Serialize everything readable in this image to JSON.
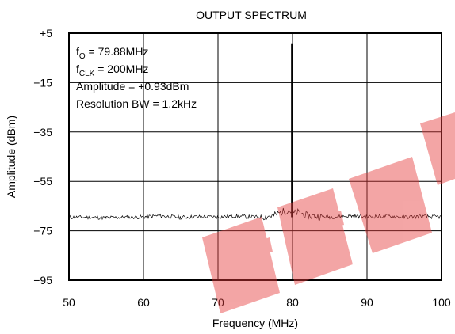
{
  "chart_data": {
    "type": "line",
    "title": "OUTPUT SPECTRUM",
    "xlabel": "Frequency (MHz)",
    "ylabel": "Amplitude (dBm)",
    "xlim": [
      50,
      100
    ],
    "ylim": [
      -95,
      5
    ],
    "x_ticks": [
      50,
      60,
      70,
      80,
      90,
      100
    ],
    "y_ticks": [
      5,
      -15,
      -35,
      -55,
      -75,
      -95
    ],
    "x_tick_labels": [
      "50",
      "60",
      "70",
      "80",
      "90",
      "100"
    ],
    "y_tick_labels": [
      "+5",
      "−15",
      "−35",
      "−55",
      "−75",
      "−95"
    ],
    "grid": true,
    "annotations": [
      {
        "main": "f",
        "sub": "O",
        "rest": " = 79.88MHz"
      },
      {
        "main": "f",
        "sub": "CLK",
        "rest": " = 200MHz"
      },
      {
        "main": "Amplitude = +0.93dBm",
        "sub": "",
        "rest": ""
      },
      {
        "main": "Resolution BW = 1.2kHz",
        "sub": "",
        "rest": ""
      }
    ],
    "watermark_text": "EEPW",
    "series": [
      {
        "noise_floor_dbm": -69.5,
        "peak": {
          "x": 79.88,
          "y": 0.93
        },
        "x": [
          50,
          55,
          60,
          62,
          65,
          67,
          70,
          72,
          75,
          76.5,
          77.5,
          78.5,
          79.5,
          80.2,
          80.8,
          82,
          85,
          88,
          90,
          93,
          95,
          97,
          100
        ],
        "y": [
          -69.5,
          -69.7,
          -69.4,
          -68.9,
          -69.6,
          -69.3,
          -69.4,
          -69,
          -69.5,
          -69.2,
          -68.8,
          -67.5,
          -66.5,
          -68,
          -67.5,
          -69,
          -69.4,
          -69,
          -69.3,
          -69,
          -69.5,
          -69.2,
          -69.4
        ]
      }
    ]
  }
}
